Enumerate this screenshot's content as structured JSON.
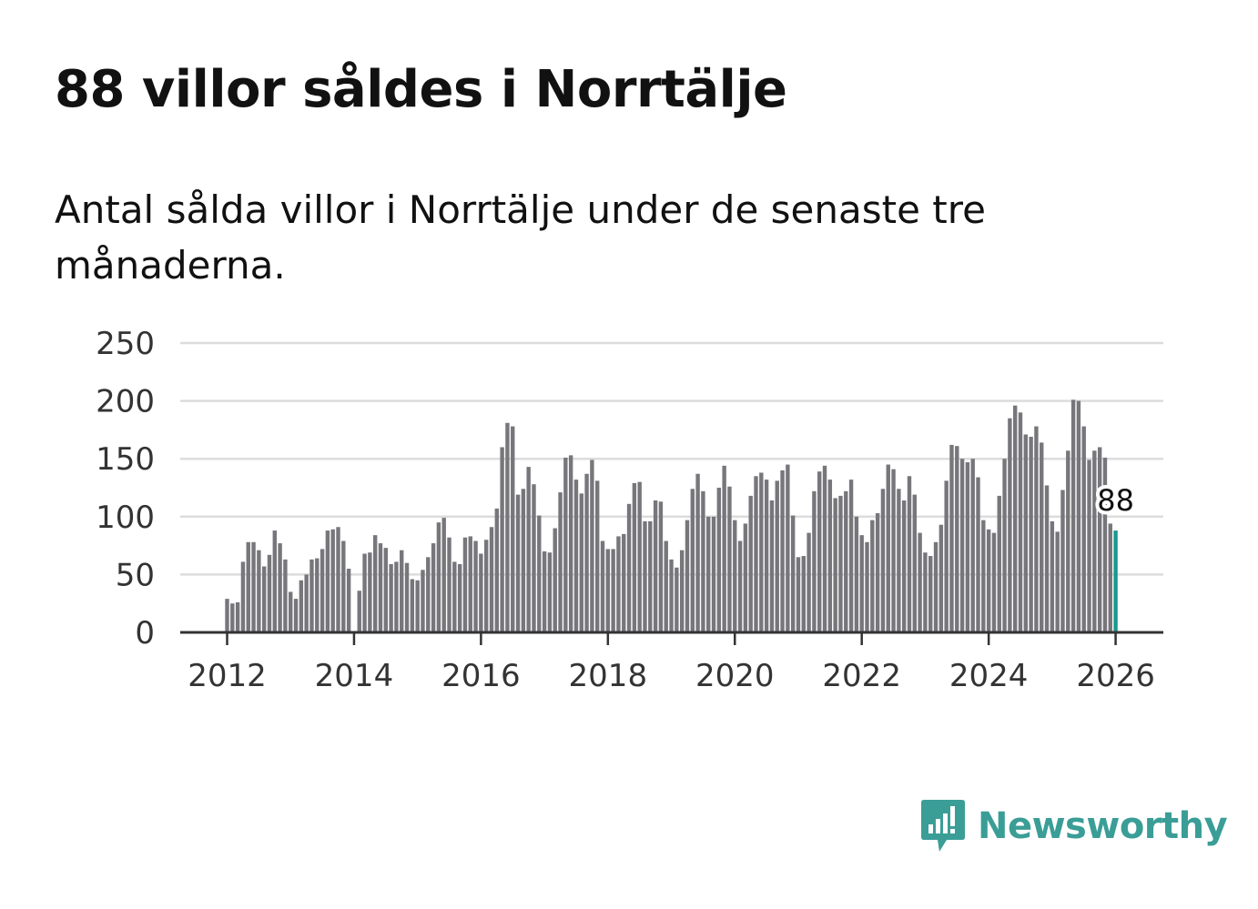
{
  "header": {
    "title": "88 villor såldes i Norrtälje",
    "subtitle": "Antal sålda villor i Norrtälje under de senaste tre månaderna."
  },
  "brand": {
    "name": "Newsworthy",
    "color": "#3a9e97"
  },
  "colors": {
    "bar": "#77767b",
    "highlight": "#17998f",
    "grid": "#dcdcdc",
    "axis": "#333333"
  },
  "chart_data": {
    "type": "bar",
    "title": "88 villor såldes i Norrtälje",
    "xlabel": "",
    "ylabel": "",
    "ylim": [
      0,
      250
    ],
    "yticks": [
      "0",
      "50",
      "100",
      "150",
      "200",
      "250"
    ],
    "xticks": [
      "2012",
      "2014",
      "2016",
      "2018",
      "2020",
      "2022",
      "2024",
      "2026"
    ],
    "start": "2012-01",
    "frequency": "monthly",
    "series": [
      {
        "name": "Antal sålda villor",
        "values": [
          29,
          25,
          26,
          61,
          78,
          78,
          71,
          57,
          67,
          88,
          77,
          63,
          35,
          29,
          45,
          50,
          63,
          64,
          72,
          88,
          89,
          91,
          79,
          55,
          null,
          36,
          68,
          69,
          84,
          77,
          73,
          59,
          61,
          71,
          60,
          46,
          45,
          54,
          65,
          77,
          95,
          99,
          82,
          61,
          59,
          82,
          83,
          79,
          68,
          80,
          91,
          107,
          160,
          181,
          178,
          119,
          124,
          143,
          128,
          101,
          70,
          69,
          90,
          121,
          151,
          153,
          132,
          120,
          137,
          149,
          131,
          79,
          72,
          72,
          83,
          85,
          111,
          129,
          130,
          96,
          96,
          114,
          113,
          79,
          63,
          56,
          71,
          97,
          124,
          137,
          122,
          100,
          100,
          125,
          144,
          126,
          97,
          79,
          94,
          118,
          135,
          138,
          132,
          114,
          131,
          140,
          145,
          101,
          65,
          66,
          86,
          122,
          139,
          144,
          132,
          116,
          118,
          122,
          132,
          100,
          84,
          78,
          97,
          103,
          124,
          145,
          141,
          124,
          114,
          135,
          119,
          86,
          69,
          66,
          78,
          93,
          131,
          162,
          161,
          150,
          147,
          150,
          134,
          97,
          89,
          86,
          118,
          150,
          185,
          196,
          190,
          171,
          169,
          178,
          164,
          127,
          96,
          87,
          123,
          157,
          201,
          200,
          178,
          149,
          157,
          160,
          151,
          94,
          88
        ]
      }
    ],
    "highlight": {
      "index": 168,
      "label": "88"
    }
  }
}
